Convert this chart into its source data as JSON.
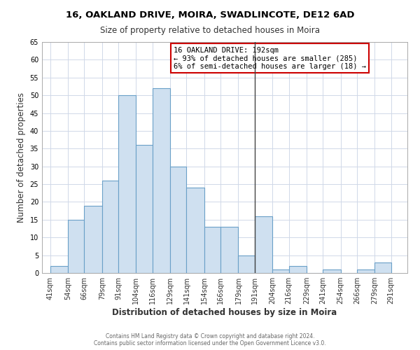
{
  "title1": "16, OAKLAND DRIVE, MOIRA, SWADLINCOTE, DE12 6AD",
  "title2": "Size of property relative to detached houses in Moira",
  "xlabel": "Distribution of detached houses by size in Moira",
  "ylabel": "Number of detached properties",
  "bar_color": "#cfe0f0",
  "bar_edge_color": "#6aa0c8",
  "bar_left_edges": [
    41,
    54,
    66,
    79,
    91,
    104,
    116,
    129,
    141,
    154,
    166,
    179,
    191,
    204,
    216,
    229,
    241,
    254,
    266,
    279
  ],
  "bar_heights": [
    2,
    15,
    19,
    26,
    50,
    36,
    52,
    30,
    24,
    13,
    13,
    5,
    16,
    1,
    2,
    0,
    1,
    0,
    1,
    3
  ],
  "bar_widths": [
    13,
    12,
    13,
    12,
    13,
    12,
    13,
    12,
    13,
    12,
    13,
    12,
    13,
    12,
    13,
    12,
    13,
    12,
    13,
    12
  ],
  "tick_labels": [
    "41sqm",
    "54sqm",
    "66sqm",
    "79sqm",
    "91sqm",
    "104sqm",
    "116sqm",
    "129sqm",
    "141sqm",
    "154sqm",
    "166sqm",
    "179sqm",
    "191sqm",
    "204sqm",
    "216sqm",
    "229sqm",
    "241sqm",
    "254sqm",
    "266sqm",
    "279sqm",
    "291sqm"
  ],
  "tick_positions": [
    41,
    54,
    66,
    79,
    91,
    104,
    116,
    129,
    141,
    154,
    166,
    179,
    191,
    204,
    216,
    229,
    241,
    254,
    266,
    279,
    291
  ],
  "ylim": [
    0,
    65
  ],
  "xlim": [
    35,
    303
  ],
  "property_line_x": 191,
  "annotation_title": "16 OAKLAND DRIVE: 192sqm",
  "annotation_line1": "← 93% of detached houses are smaller (285)",
  "annotation_line2": "6% of semi-detached houses are larger (18) →",
  "annotation_box_color": "#ffffff",
  "annotation_box_edge_color": "#cc0000",
  "grid_color": "#d0d8e8",
  "footer1": "Contains HM Land Registry data © Crown copyright and database right 2024.",
  "footer2": "Contains public sector information licensed under the Open Government Licence v3.0.",
  "bg_color": "#ffffff",
  "property_line_color": "#444444",
  "title1_fontsize": 9.5,
  "title2_fontsize": 8.5,
  "xlabel_fontsize": 8.5,
  "ylabel_fontsize": 8.5,
  "tick_fontsize": 7,
  "ann_fontsize": 7.5,
  "footer_fontsize": 5.5
}
